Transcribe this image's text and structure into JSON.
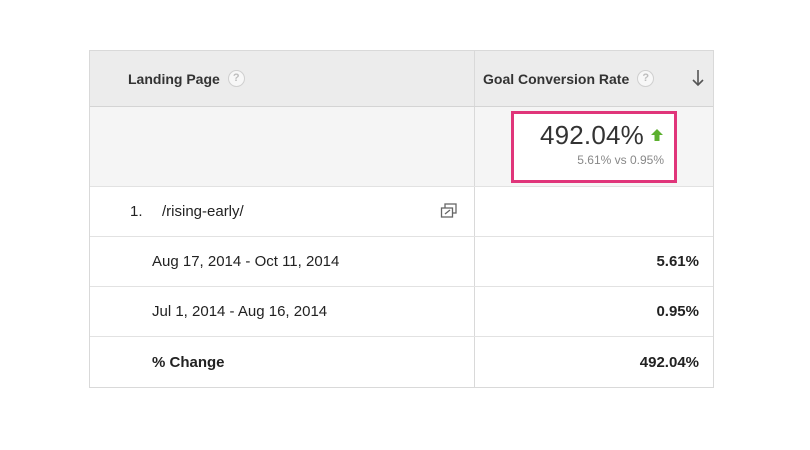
{
  "table": {
    "headers": {
      "landing_page": "Landing Page",
      "goal_conversion_rate": "Goal Conversion Rate",
      "help_glyph": "?"
    },
    "summary": {
      "value": "492.04%",
      "comparison": "5.61% vs 0.95%",
      "trend_icon": "up-arrow-icon",
      "trend_color": "#5cb02f",
      "highlight_color": "#e0357a"
    },
    "rows": [
      {
        "index": "1.",
        "page": "/rising-early/",
        "sub_rows": [
          {
            "label": "Aug 17, 2014 - Oct 11, 2014",
            "value": "5.61%"
          },
          {
            "label": "Jul 1, 2014 - Aug 16, 2014",
            "value": "0.95%"
          },
          {
            "label": "% Change",
            "value": "492.04%"
          }
        ]
      }
    ]
  }
}
